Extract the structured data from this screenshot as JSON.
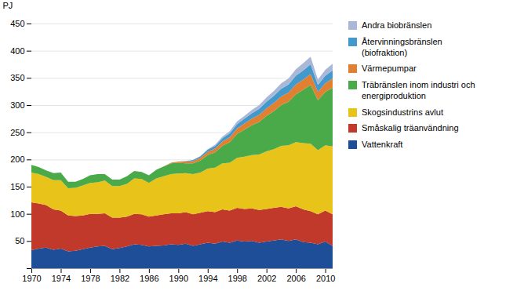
{
  "chart_data": {
    "type": "area",
    "stacked": true,
    "x": [
      1970,
      1971,
      1972,
      1973,
      1974,
      1975,
      1976,
      1977,
      1978,
      1979,
      1980,
      1981,
      1982,
      1983,
      1984,
      1985,
      1986,
      1987,
      1988,
      1989,
      1990,
      1991,
      1992,
      1993,
      1994,
      1995,
      1996,
      1997,
      1998,
      1999,
      2000,
      2001,
      2002,
      2003,
      2004,
      2005,
      2006,
      2007,
      2008,
      2009,
      2010,
      2011
    ],
    "series": [
      {
        "name": "Vattenkraft",
        "color": "#1f4e99",
        "values": [
          33,
          36,
          38,
          34,
          36,
          31,
          32,
          35,
          38,
          40,
          41,
          35,
          37,
          40,
          44,
          43,
          40,
          41,
          42,
          44,
          43,
          45,
          41,
          44,
          47,
          45,
          49,
          47,
          51,
          49,
          50,
          47,
          49,
          51,
          53,
          50,
          53,
          48,
          47,
          44,
          49,
          41
        ]
      },
      {
        "name": "Småskalig träanvändning",
        "color": "#c0392b",
        "values": [
          88,
          83,
          78,
          74,
          70,
          66,
          64,
          62,
          62,
          60,
          60,
          58,
          56,
          55,
          56,
          56,
          55,
          56,
          57,
          57,
          58,
          58,
          58,
          58,
          58,
          58,
          59,
          59,
          60,
          60,
          60,
          60,
          60,
          60,
          60,
          60,
          61,
          60,
          58,
          55,
          57,
          58
        ]
      },
      {
        "name": "Skogsindustrins avlut",
        "color": "#e8c319",
        "values": [
          55,
          54,
          52,
          54,
          56,
          50,
          52,
          55,
          57,
          58,
          60,
          58,
          58,
          60,
          65,
          65,
          62,
          68,
          70,
          72,
          73,
          72,
          74,
          74,
          78,
          82,
          85,
          88,
          92,
          96,
          98,
          102,
          106,
          108,
          112,
          116,
          118,
          122,
          124,
          118,
          120,
          125
        ]
      },
      {
        "name": "Träbränslen inom industri och\nenergiproduktion",
        "color": "#4aaa4a",
        "values": [
          14,
          13,
          12,
          13,
          14,
          12,
          11,
          12,
          14,
          15,
          12,
          12,
          12,
          14,
          14,
          13,
          14,
          16,
          18,
          20,
          20,
          18,
          20,
          22,
          25,
          28,
          32,
          38,
          44,
          50,
          55,
          60,
          65,
          70,
          75,
          80,
          88,
          98,
          108,
          92,
          98,
          108
        ]
      },
      {
        "name": "Värmepumpar",
        "color": "#e08030",
        "values": [
          0,
          0,
          0,
          0,
          0,
          0,
          0,
          0,
          0,
          0,
          0,
          0,
          0,
          0,
          0,
          0,
          0,
          0,
          0,
          1,
          2,
          3,
          4,
          5,
          6,
          7,
          8,
          9,
          10,
          11,
          12,
          13,
          14,
          15,
          16,
          17,
          18,
          19,
          20,
          15,
          16,
          17
        ]
      },
      {
        "name": "Återvinningsbränslen\n(biofraktion)",
        "color": "#4499cc",
        "values": [
          0,
          0,
          0,
          0,
          0,
          0,
          0,
          0,
          0,
          0,
          0,
          0,
          0,
          0,
          0,
          0,
          0,
          0,
          0,
          0,
          0,
          1,
          2,
          3,
          4,
          5,
          6,
          7,
          8,
          9,
          10,
          11,
          12,
          13,
          14,
          15,
          16,
          17,
          18,
          13,
          14,
          15
        ]
      },
      {
        "name": "Andra biobränslen",
        "color": "#aab8d8",
        "values": [
          0,
          0,
          0,
          0,
          0,
          0,
          0,
          0,
          0,
          0,
          0,
          0,
          0,
          0,
          0,
          0,
          0,
          0,
          0,
          0,
          0,
          0,
          0,
          0,
          1,
          2,
          3,
          4,
          5,
          5,
          6,
          7,
          8,
          9,
          10,
          11,
          12,
          13,
          14,
          10,
          11,
          12
        ]
      }
    ],
    "ylabel": "PJ",
    "xlim": [
      1970,
      2011
    ],
    "xticks": [
      1970,
      1974,
      1978,
      1982,
      1986,
      1990,
      1994,
      1998,
      2002,
      2006,
      2010
    ],
    "ylim": [
      0,
      450
    ],
    "yticks": [
      {
        "value": 0,
        "label": null
      },
      50,
      100,
      150,
      200,
      250,
      300,
      350,
      400,
      450
    ],
    "grid": true,
    "legend": "right"
  }
}
